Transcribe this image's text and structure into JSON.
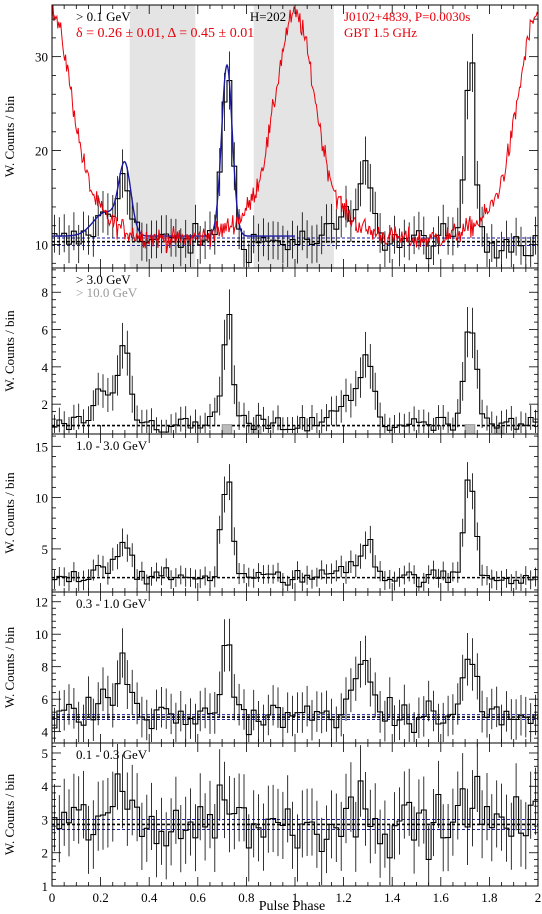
{
  "figure": {
    "xlabel": "Pulse Phase",
    "ylabel": "W. Counts / bin",
    "x_ticks": [
      "0",
      "0.2",
      "0.4",
      "0.6",
      "0.8",
      "1",
      "1.2",
      "1.4",
      "1.6",
      "1.8",
      "2"
    ]
  },
  "chart_data": [
    {
      "type": "line",
      "panel": "> 0.1 GeV",
      "labels": {
        "energy": "> 0.1 GeV",
        "fit": "δ = 0.26 ± 0.01, Δ = 0.45 ± 0.01",
        "harmonic": "H=202",
        "pulsar": "J0102+4839, P=0.0030s",
        "radio": "GBT 1.5 GHz"
      },
      "colors": {
        "gamma": "#000000",
        "fit": "#1a1aa0",
        "radio": "#e8000b",
        "shade": "#e4e4e4",
        "label_red": "#e8000b"
      },
      "xlim": [
        0,
        2
      ],
      "ylim": [
        7.5,
        35.5
      ],
      "yticks": [
        10,
        20,
        30
      ],
      "shaded_ranges": [
        [
          0.32,
          0.59
        ],
        [
          0.83,
          1.16
        ]
      ],
      "baseline": 10.3,
      "baseline_band": [
        9.9,
        10.7
      ],
      "peaks_gamma": [
        {
          "x": 0.3,
          "y": 17.5
        },
        {
          "x": 0.72,
          "y": 28.5
        }
      ],
      "radio_peak": {
        "x": 1.0,
        "y": 34.5
      },
      "series_names": [
        "> 0.1 GeV",
        "fit",
        "GBT 1.5 GHz"
      ]
    },
    {
      "type": "line",
      "panel": "> 3.0 GeV",
      "labels": {
        "energy": "> 3.0 GeV",
        "energy2": "> 10.0 GeV"
      },
      "colors": {
        "gamma": "#000000",
        "gamma2": "#888888",
        "label2": "#999999"
      },
      "xlim": [
        0,
        2
      ],
      "ylim": [
        0.4,
        9.3
      ],
      "yticks": [
        2,
        4,
        6,
        8
      ],
      "baseline": 0.85,
      "peaks_gamma": [
        {
          "x": 0.3,
          "y": 4.5
        },
        {
          "x": 0.72,
          "y": 6.5
        }
      ],
      "peaks_gamma2": [
        {
          "x": 0.72,
          "y": 0.9
        },
        {
          "x": 0.84,
          "y": 0.8
        }
      ]
    },
    {
      "type": "line",
      "panel": "1.0 - 3.0 GeV",
      "labels": {
        "energy": "1.0 - 3.0 GeV"
      },
      "xlim": [
        0,
        2
      ],
      "ylim": [
        0.8,
        16.2
      ],
      "yticks": [
        5,
        10,
        15
      ],
      "baseline": 2.2,
      "peaks_gamma": [
        {
          "x": 0.3,
          "y": 5.8
        },
        {
          "x": 0.72,
          "y": 12.2
        }
      ]
    },
    {
      "type": "line",
      "panel": "0.3 - 1.0 GeV",
      "labels": {
        "energy": "0.3 - 1.0 GeV"
      },
      "xlim": [
        0,
        2
      ],
      "ylim": [
        3.3,
        12.6
      ],
      "yticks": [
        4,
        6,
        8,
        10,
        12
      ],
      "baseline": 4.9,
      "baseline_band": [
        4.75,
        5.05
      ],
      "peaks_gamma": [
        {
          "x": 0.3,
          "y": 7.8
        },
        {
          "x": 0.72,
          "y": 9.7
        }
      ]
    },
    {
      "type": "line",
      "panel": "0.1 - 0.3 GeV",
      "labels": {
        "energy": "0.1 - 0.3 GeV"
      },
      "xlim": [
        0,
        2
      ],
      "ylim": [
        1.0,
        5.3
      ],
      "yticks": [
        1,
        2,
        3,
        4,
        5
      ],
      "baseline": 2.85,
      "baseline_band": [
        2.7,
        3.0
      ],
      "peaks_gamma": [
        {
          "x": 0.3,
          "y": 3.6
        },
        {
          "x": 0.72,
          "y": 4.1
        }
      ]
    }
  ]
}
